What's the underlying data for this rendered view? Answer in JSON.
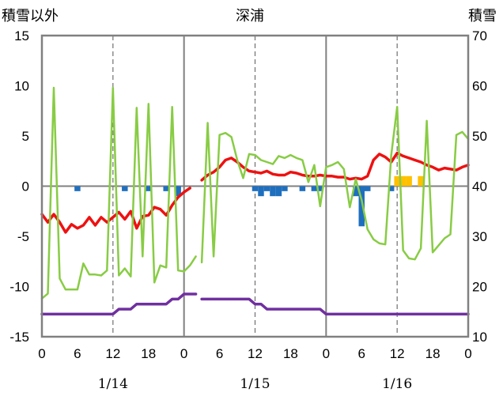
{
  "chart_data": {
    "type": "line",
    "title": "深浦",
    "y_left_label": "積雪以外",
    "y_right_label": "積雪",
    "y_left_range": [
      -15,
      15
    ],
    "y_left_ticks": [
      "15",
      "10",
      "5",
      "0",
      "-5",
      "-10",
      "-15"
    ],
    "y_right_range": [
      10,
      70
    ],
    "y_right_ticks": [
      "70",
      "60",
      "50",
      "40",
      "30",
      "20",
      "10"
    ],
    "x_range_hours": [
      0,
      72
    ],
    "x_tick_labels": [
      "0",
      "6",
      "12",
      "18",
      "0",
      "6",
      "12",
      "18",
      "0",
      "6",
      "12",
      "18",
      "0"
    ],
    "date_labels": [
      "1/14",
      "1/15",
      "1/16"
    ],
    "grid": {
      "solid_at_hours": [
        24,
        48
      ],
      "dashed_at_hours": [
        12,
        36,
        60
      ]
    },
    "series": [
      {
        "color": "#ee1111",
        "points": [
          [
            0,
            -2.8
          ],
          [
            1,
            -3.6
          ],
          [
            2,
            -2.8
          ],
          [
            3,
            -3.6
          ],
          [
            4,
            -4.6
          ],
          [
            5,
            -3.8
          ],
          [
            6,
            -4.2
          ],
          [
            7,
            -3.9
          ],
          [
            8,
            -3.1
          ],
          [
            9,
            -3.9
          ],
          [
            10,
            -3.1
          ],
          [
            11,
            -3.6
          ],
          [
            12,
            -3.1
          ],
          [
            13,
            -2.6
          ],
          [
            14,
            -3.3
          ],
          [
            15,
            -2.5
          ],
          [
            16,
            -4.2
          ],
          [
            17,
            -3.0
          ],
          [
            18,
            -2.9
          ],
          [
            19,
            -2.1
          ],
          [
            20,
            -2.3
          ],
          [
            21,
            -2.9
          ],
          [
            22,
            -1.9
          ],
          [
            23,
            -1.1
          ],
          [
            24,
            -0.6
          ],
          [
            25,
            -0.2
          ],
          null,
          [
            27,
            0.6
          ],
          [
            28,
            1.1
          ],
          [
            29,
            1.4
          ],
          [
            30,
            1.9
          ],
          [
            31,
            2.6
          ],
          [
            32,
            2.8
          ],
          [
            33,
            2.4
          ],
          [
            34,
            1.9
          ],
          [
            35,
            1.5
          ],
          [
            36,
            1.4
          ],
          [
            37,
            1.3
          ],
          [
            38,
            1.5
          ],
          [
            39,
            1.2
          ],
          [
            40,
            1.1
          ],
          [
            41,
            1.1
          ],
          [
            42,
            1.4
          ],
          [
            43,
            1.3
          ],
          [
            44,
            1.1
          ],
          [
            45,
            1.0
          ],
          [
            46,
            1.0
          ],
          [
            47,
            1.1
          ],
          [
            48,
            1.0
          ],
          [
            49,
            1.0
          ],
          [
            50,
            0.9
          ],
          [
            51,
            0.9
          ],
          [
            52,
            0.7
          ],
          [
            53,
            0.8
          ],
          [
            54,
            0.7
          ],
          [
            55,
            1.0
          ],
          [
            56,
            2.6
          ],
          [
            57,
            3.2
          ],
          [
            58,
            2.9
          ],
          [
            59,
            2.4
          ],
          [
            60,
            3.3
          ],
          [
            61,
            3.0
          ],
          [
            62,
            2.8
          ],
          [
            63,
            2.6
          ],
          [
            64,
            2.4
          ],
          [
            65,
            2.1
          ],
          [
            66,
            1.9
          ],
          [
            67,
            1.6
          ],
          [
            68,
            1.8
          ],
          [
            69,
            1.7
          ],
          [
            70,
            1.6
          ],
          [
            71,
            1.9
          ],
          [
            72,
            2.1
          ]
        ]
      },
      {
        "color": "#88cc44",
        "points": [
          [
            0,
            -11.2
          ],
          [
            1,
            -10.7
          ],
          [
            2,
            9.8
          ],
          [
            3,
            -9.2
          ],
          [
            4,
            -10.3
          ],
          [
            5,
            -10.3
          ],
          [
            6,
            -10.3
          ],
          [
            7,
            -7.7
          ],
          [
            8,
            -8.8
          ],
          [
            9,
            -8.8
          ],
          [
            10,
            -8.9
          ],
          [
            11,
            -8.4
          ],
          [
            12,
            9.8
          ],
          [
            13,
            -8.9
          ],
          [
            14,
            -8.2
          ],
          [
            15,
            -9.0
          ],
          [
            16,
            7.8
          ],
          [
            17,
            -7.0
          ],
          [
            18,
            8.2
          ],
          [
            19,
            -9.6
          ],
          [
            20,
            -7.9
          ],
          [
            21,
            -8.1
          ],
          [
            22,
            7.9
          ],
          [
            23,
            -8.4
          ],
          [
            24,
            -8.5
          ],
          [
            25,
            -7.9
          ],
          [
            26,
            -7.0
          ],
          null,
          [
            27,
            -7.6
          ],
          [
            28,
            6.3
          ],
          [
            29,
            -7.0
          ],
          [
            30,
            5.1
          ],
          [
            31,
            5.3
          ],
          [
            32,
            4.9
          ],
          [
            33,
            2.6
          ],
          [
            34,
            0.8
          ],
          [
            35,
            3.2
          ],
          [
            36,
            3.1
          ],
          [
            37,
            2.6
          ],
          [
            38,
            2.4
          ],
          [
            39,
            2.2
          ],
          [
            40,
            3.0
          ],
          [
            41,
            2.8
          ],
          [
            42,
            3.1
          ],
          [
            43,
            2.8
          ],
          [
            44,
            2.6
          ],
          [
            45,
            0.4
          ],
          [
            46,
            2.1
          ],
          [
            47,
            -2.0
          ],
          [
            48,
            1.9
          ],
          [
            49,
            2.1
          ],
          [
            50,
            2.4
          ],
          [
            51,
            1.7
          ],
          [
            52,
            -2.1
          ],
          [
            53,
            0.7
          ],
          [
            54,
            -1.4
          ],
          [
            55,
            -4.3
          ],
          [
            56,
            -5.3
          ],
          [
            57,
            -5.7
          ],
          [
            58,
            -5.8
          ],
          [
            59,
            3.1
          ],
          [
            60,
            7.9
          ],
          [
            61,
            -6.4
          ],
          [
            62,
            -7.2
          ],
          [
            63,
            -7.3
          ],
          [
            64,
            -6.2
          ],
          [
            65,
            6.5
          ],
          [
            66,
            -6.6
          ],
          [
            67,
            -5.9
          ],
          [
            68,
            -5.2
          ],
          [
            69,
            -4.8
          ],
          [
            70,
            5.1
          ],
          [
            71,
            5.4
          ],
          [
            72,
            4.7
          ]
        ]
      },
      {
        "color": "#7030a0",
        "axis": "right",
        "points": [
          [
            0,
            14.5
          ],
          [
            12,
            14.5
          ],
          [
            13,
            15.5
          ],
          [
            15,
            15.5
          ],
          [
            16,
            16.5
          ],
          [
            21,
            16.5
          ],
          [
            22,
            17.5
          ],
          [
            23,
            17.5
          ],
          [
            24,
            18.5
          ],
          [
            26,
            18.5
          ],
          null,
          [
            27,
            17.5
          ],
          [
            35,
            17.5
          ],
          [
            36,
            16.5
          ],
          [
            37,
            16.5
          ],
          [
            38,
            15.5
          ],
          [
            47,
            15.5
          ],
          [
            48,
            14.5
          ],
          [
            72,
            14.5
          ]
        ]
      }
    ],
    "bars": [
      {
        "color": "#1f6fbf",
        "values": [
          [
            6,
            -0.5
          ],
          [
            14,
            -0.5
          ],
          [
            18,
            -0.5
          ],
          [
            21,
            -0.5
          ],
          [
            23,
            -1.0
          ],
          [
            36,
            -0.5
          ],
          [
            37,
            -1.0
          ],
          [
            38,
            -0.5
          ],
          [
            39,
            -1.0
          ],
          [
            40,
            -1.0
          ],
          [
            41,
            -0.5
          ],
          [
            44,
            -0.5
          ],
          [
            46,
            -0.5
          ],
          [
            47,
            -0.5
          ],
          [
            53,
            -1.0
          ],
          [
            54,
            -4.0
          ],
          [
            55,
            -0.5
          ],
          [
            59,
            -0.5
          ]
        ]
      },
      {
        "color": "#ffc000",
        "values": [
          [
            60,
            1.0
          ],
          [
            61,
            1.0
          ],
          [
            62,
            1.0
          ],
          [
            64,
            1.0
          ]
        ]
      }
    ]
  }
}
